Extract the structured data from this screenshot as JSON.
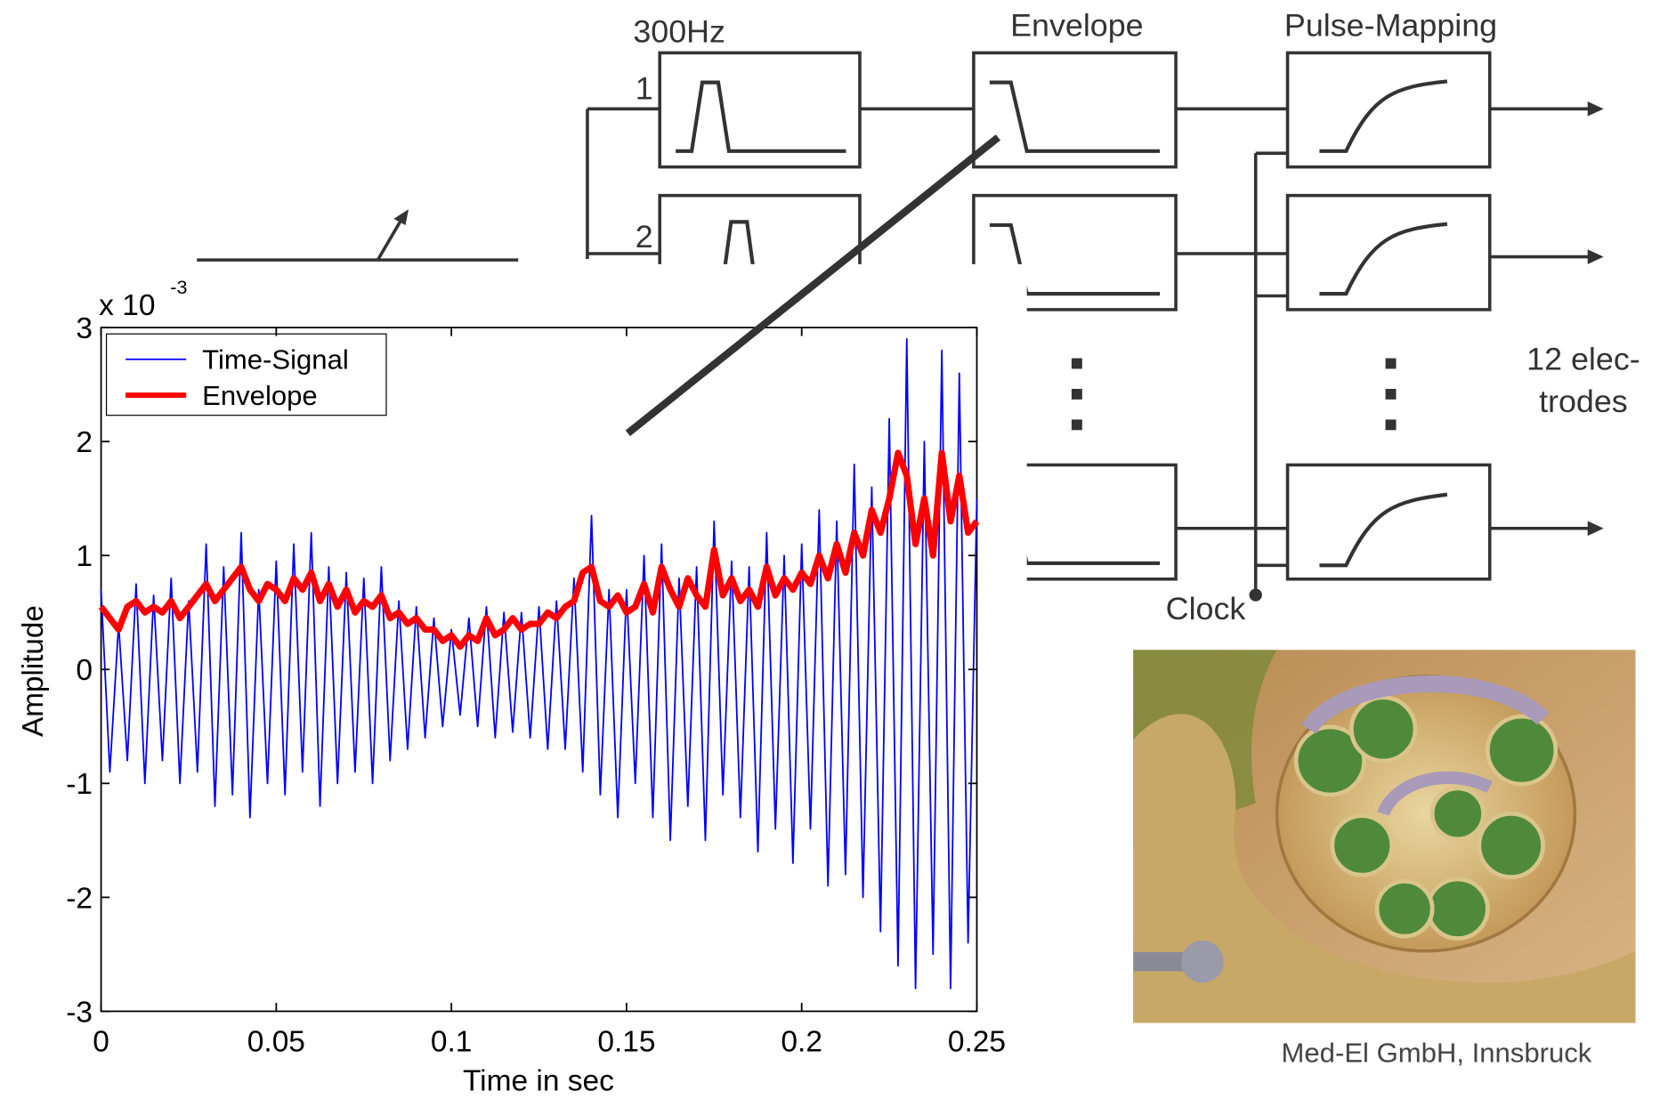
{
  "diagram": {
    "filter_label": "300Hz",
    "channel_labels": [
      "1",
      "2"
    ],
    "stage_labels": [
      "Envelope",
      "Pulse-Mapping"
    ],
    "output_label": [
      "12 elec-",
      "trodes"
    ],
    "clock_label": "Clock",
    "credit": "Med-El GmbH, Innsbruck"
  },
  "chart_data": {
    "type": "line",
    "xlabel": "Time in sec",
    "ylabel": "Amplitude",
    "y_multiplier": "x 10",
    "y_exponent": "-3",
    "xlim": [
      0,
      0.25
    ],
    "ylim": [
      -3,
      3
    ],
    "xticks": [
      0,
      0.05,
      0.1,
      0.15,
      0.2,
      0.25
    ],
    "yticks": [
      -3,
      -2,
      -1,
      0,
      1,
      2,
      3
    ],
    "legend": "upper left",
    "x": [
      0,
      0.0025,
      0.005,
      0.0075,
      0.01,
      0.0125,
      0.015,
      0.0175,
      0.02,
      0.0225,
      0.025,
      0.0275,
      0.03,
      0.0325,
      0.035,
      0.0375,
      0.04,
      0.0425,
      0.045,
      0.0475,
      0.05,
      0.0525,
      0.055,
      0.0575,
      0.06,
      0.0625,
      0.065,
      0.0675,
      0.07,
      0.0725,
      0.075,
      0.0775,
      0.08,
      0.0825,
      0.085,
      0.0875,
      0.09,
      0.0925,
      0.095,
      0.0975,
      0.1,
      0.1025,
      0.105,
      0.1075,
      0.11,
      0.1125,
      0.115,
      0.1175,
      0.12,
      0.1225,
      0.125,
      0.1275,
      0.13,
      0.1325,
      0.135,
      0.1375,
      0.14,
      0.1425,
      0.145,
      0.1475,
      0.15,
      0.1525,
      0.155,
      0.1575,
      0.16,
      0.1625,
      0.165,
      0.1675,
      0.17,
      0.1725,
      0.175,
      0.1775,
      0.18,
      0.1825,
      0.185,
      0.1875,
      0.19,
      0.1925,
      0.195,
      0.1975,
      0.2,
      0.2025,
      0.205,
      0.2075,
      0.21,
      0.2125,
      0.215,
      0.2175,
      0.22,
      0.2225,
      0.225,
      0.2275,
      0.23,
      0.2325,
      0.235,
      0.2375,
      0.24,
      0.2425,
      0.245,
      0.2475,
      0.25
    ],
    "series": [
      {
        "name": "Time-Signal",
        "color": "#0000ff",
        "width": 1.5,
        "values": [
          0.7,
          -0.9,
          0.4,
          -0.8,
          0.75,
          -1.0,
          0.65,
          -0.8,
          0.8,
          -1.0,
          0.6,
          -0.9,
          1.1,
          -1.2,
          0.9,
          -1.1,
          1.2,
          -1.3,
          0.7,
          -1.0,
          0.95,
          -1.1,
          1.1,
          -0.9,
          1.2,
          -1.2,
          0.9,
          -1.0,
          0.85,
          -0.9,
          0.8,
          -1.0,
          0.9,
          -0.8,
          0.6,
          -0.7,
          0.55,
          -0.6,
          0.45,
          -0.5,
          0.35,
          -0.4,
          0.45,
          -0.5,
          0.55,
          -0.6,
          0.5,
          -0.55,
          0.5,
          -0.6,
          0.55,
          -0.7,
          0.6,
          -0.7,
          0.8,
          -0.9,
          1.35,
          -1.1,
          0.7,
          -1.3,
          0.7,
          -1.0,
          1.0,
          -1.3,
          1.1,
          -1.5,
          0.8,
          -1.2,
          0.9,
          -1.5,
          1.3,
          -1.1,
          0.95,
          -1.3,
          0.9,
          -1.6,
          1.2,
          -1.4,
          1.0,
          -1.7,
          1.1,
          -1.4,
          1.4,
          -1.9,
          1.3,
          -1.8,
          1.8,
          -2.0,
          1.6,
          -2.3,
          2.2,
          -2.6,
          2.9,
          -2.8,
          2.0,
          -2.5,
          2.8,
          -2.8,
          2.6,
          -2.4,
          1.5
        ]
      },
      {
        "name": "Envelope",
        "color": "#ff0000",
        "width": 6,
        "values": [
          0.55,
          0.45,
          0.35,
          0.55,
          0.6,
          0.5,
          0.55,
          0.5,
          0.6,
          0.45,
          0.55,
          0.65,
          0.75,
          0.6,
          0.7,
          0.8,
          0.9,
          0.7,
          0.6,
          0.75,
          0.7,
          0.6,
          0.8,
          0.7,
          0.85,
          0.6,
          0.75,
          0.55,
          0.7,
          0.5,
          0.6,
          0.55,
          0.65,
          0.45,
          0.5,
          0.4,
          0.45,
          0.35,
          0.35,
          0.25,
          0.3,
          0.2,
          0.3,
          0.25,
          0.45,
          0.3,
          0.35,
          0.45,
          0.35,
          0.4,
          0.4,
          0.5,
          0.45,
          0.55,
          0.6,
          0.85,
          0.9,
          0.6,
          0.55,
          0.65,
          0.5,
          0.55,
          0.75,
          0.5,
          0.9,
          0.7,
          0.55,
          0.8,
          0.65,
          0.55,
          1.05,
          0.65,
          0.8,
          0.6,
          0.7,
          0.55,
          0.9,
          0.65,
          0.8,
          0.7,
          0.85,
          0.75,
          1.0,
          0.8,
          1.1,
          0.85,
          1.2,
          1.0,
          1.4,
          1.2,
          1.5,
          1.9,
          1.7,
          1.1,
          1.5,
          1.0,
          1.9,
          1.3,
          1.7,
          1.2,
          1.3
        ]
      }
    ]
  }
}
